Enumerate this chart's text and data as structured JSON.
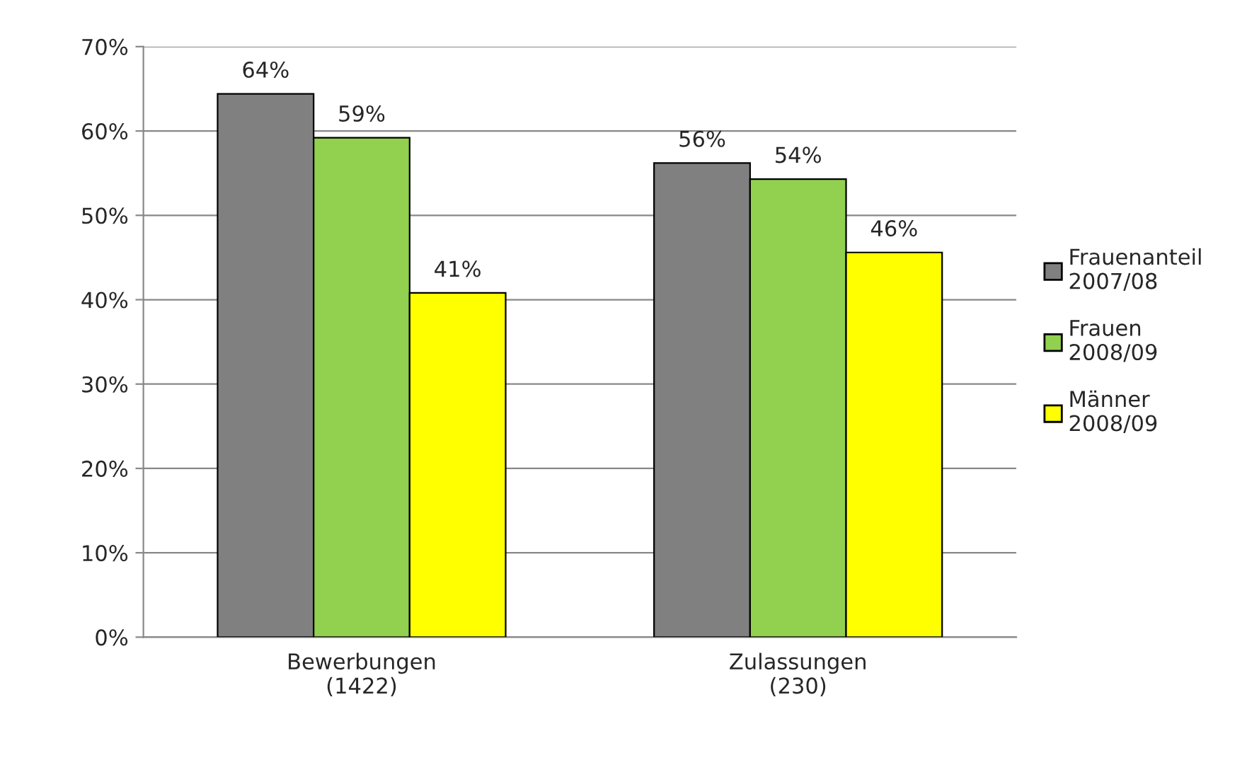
{
  "chart_data": {
    "type": "bar",
    "categories": [
      "Bewerbungen\n(1422)",
      "Zulassungen\n(230)"
    ],
    "series": [
      {
        "name": "Frauenanteil\n2007/08",
        "color": "#808080",
        "values": [
          64.4,
          56.2
        ],
        "value_labels": [
          "64%",
          "56%"
        ]
      },
      {
        "name": "Frauen\n2008/09",
        "color": "#92d050",
        "values": [
          59.2,
          54.3
        ],
        "value_labels": [
          "59%",
          "54%"
        ]
      },
      {
        "name": "Männer\n2008/09",
        "color": "#ffff00",
        "values": [
          40.8,
          45.6
        ],
        "value_labels": [
          "41%",
          "46%"
        ]
      }
    ],
    "ylim": [
      0,
      70
    ],
    "yticks": [
      {
        "value": 0,
        "label": "0%"
      },
      {
        "value": 10,
        "label": "10%"
      },
      {
        "value": 20,
        "label": "20%"
      },
      {
        "value": 30,
        "label": "30%"
      },
      {
        "value": 40,
        "label": "40%"
      },
      {
        "value": 50,
        "label": "50%"
      },
      {
        "value": 60,
        "label": "60%"
      },
      {
        "value": 70,
        "label": "70%"
      }
    ],
    "grid": "y",
    "legend": "right"
  }
}
